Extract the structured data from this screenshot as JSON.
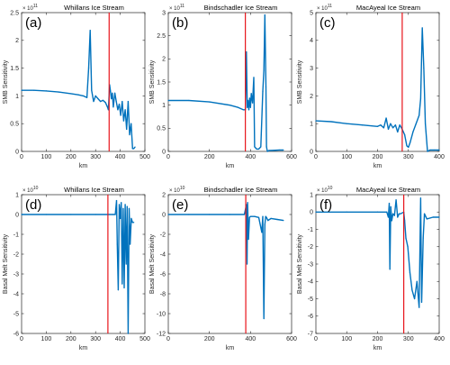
{
  "colors": {
    "series": "#0072BD",
    "marker": "#E8141B",
    "frame": "#262626"
  },
  "chart_data": [
    {
      "type": "line",
      "letter": "(a)",
      "title": "Whillans Ice Stream",
      "xlabel": "km",
      "ylabel": "SMB Sensitivity",
      "exponent": "× 10",
      "exponent_power": "11",
      "xlim": [
        0,
        500
      ],
      "ylim": [
        0,
        2.5
      ],
      "xticks": [
        0,
        100,
        200,
        300,
        400,
        500
      ],
      "xtick_labels": [
        "0",
        "100",
        "200",
        "300",
        "400",
        "500"
      ],
      "yticks": [
        0,
        0.5,
        1,
        1.5,
        2,
        2.5
      ],
      "ytick_labels": [
        "0",
        "0.5",
        "1",
        "1.5",
        "2",
        "2.5"
      ],
      "marker_x": 355,
      "x": [
        0,
        50,
        100,
        150,
        200,
        230,
        250,
        265,
        272,
        278,
        284,
        292,
        300,
        310,
        320,
        330,
        340,
        348,
        352,
        357,
        360,
        364,
        368,
        372,
        378,
        384,
        390,
        396,
        402,
        408,
        414,
        420,
        426,
        432,
        438,
        444,
        450,
        455,
        460
      ],
      "y": [
        1.1,
        1.1,
        1.09,
        1.07,
        1.04,
        1.02,
        1.0,
        0.97,
        1.5,
        2.18,
        1.1,
        0.9,
        1.0,
        0.95,
        0.9,
        0.92,
        0.88,
        0.8,
        0.75,
        1.2,
        1.1,
        0.95,
        1.05,
        0.8,
        1.05,
        0.9,
        0.75,
        0.85,
        0.65,
        0.9,
        0.55,
        0.75,
        0.4,
        0.9,
        0.3,
        0.5,
        0.05,
        0.05,
        0.08
      ]
    },
    {
      "type": "line",
      "letter": "(b)",
      "title": "Bindschadler Ice Stream",
      "xlabel": "km",
      "ylabel": "SMB Sensitivity",
      "exponent": "× 10",
      "exponent_power": "11",
      "xlim": [
        0,
        600
      ],
      "ylim": [
        0,
        3
      ],
      "xticks": [
        0,
        200,
        400,
        600
      ],
      "xtick_labels": [
        "0",
        "200",
        "400",
        "600"
      ],
      "yticks": [
        0,
        0.5,
        1,
        1.5,
        2,
        2.5,
        3
      ],
      "ytick_labels": [
        "0",
        "0.5",
        "1",
        "1.5",
        "2",
        "2.5",
        "3"
      ],
      "marker_x": 375,
      "x": [
        0,
        100,
        200,
        300,
        340,
        365,
        375,
        380,
        384,
        388,
        392,
        396,
        400,
        404,
        410,
        416,
        420,
        430,
        440,
        450,
        460,
        465,
        470,
        475,
        478,
        482,
        490,
        500,
        540,
        560
      ],
      "y": [
        1.1,
        1.1,
        1.07,
        1.0,
        0.95,
        0.9,
        0.9,
        2.15,
        0.95,
        1.1,
        0.9,
        1.15,
        0.95,
        1.25,
        1.05,
        1.6,
        0.1,
        0.05,
        0.05,
        0.1,
        1.3,
        1.75,
        2.95,
        1.4,
        0.1,
        0.0,
        0.02,
        0.02,
        0.03,
        0.03
      ]
    },
    {
      "type": "line",
      "letter": "(c)",
      "title": "MacAyeal Ice Stream",
      "xlabel": "km",
      "ylabel": "SMB Sensitivity",
      "exponent": "× 10",
      "exponent_power": "11",
      "xlim": [
        0,
        400
      ],
      "ylim": [
        0,
        5
      ],
      "xticks": [
        0,
        100,
        200,
        300,
        400
      ],
      "xtick_labels": [
        "0",
        "100",
        "200",
        "300",
        "400"
      ],
      "yticks": [
        0,
        1,
        2,
        3,
        4,
        5
      ],
      "ytick_labels": [
        "0",
        "1",
        "2",
        "3",
        "4",
        "5"
      ],
      "marker_x": 280,
      "x": [
        0,
        50,
        100,
        150,
        200,
        210,
        220,
        228,
        235,
        242,
        250,
        258,
        265,
        272,
        280,
        288,
        295,
        300,
        305,
        315,
        325,
        335,
        340,
        345,
        350,
        355,
        362,
        370,
        385,
        400
      ],
      "y": [
        1.1,
        1.07,
        1.0,
        0.95,
        0.9,
        0.95,
        0.85,
        1.2,
        0.8,
        1.0,
        0.85,
        0.95,
        0.7,
        0.95,
        0.8,
        0.6,
        0.2,
        0.15,
        0.3,
        0.7,
        1.0,
        1.3,
        1.9,
        4.45,
        3.0,
        1.0,
        0.0,
        0.05,
        0.05,
        0.05
      ]
    },
    {
      "type": "line",
      "letter": "(d)",
      "title": "Whillans Ice Stream",
      "xlabel": "km",
      "ylabel": "Basal Melt Sensitivity",
      "exponent": "× 10",
      "exponent_power": "10",
      "xlim": [
        0,
        500
      ],
      "ylim": [
        -6,
        1
      ],
      "xticks": [
        0,
        100,
        200,
        300,
        400,
        500
      ],
      "xtick_labels": [
        "0",
        "100",
        "200",
        "300",
        "400",
        "500"
      ],
      "yticks": [
        -6,
        -5,
        -4,
        -3,
        -2,
        -1,
        0,
        1
      ],
      "ytick_labels": [
        "-6",
        "-5",
        "-4",
        "-3",
        "-2",
        "-1",
        "0",
        "1"
      ],
      "marker_x": 350,
      "x": [
        0,
        100,
        200,
        300,
        370,
        380,
        385,
        388,
        392,
        396,
        400,
        404,
        408,
        412,
        416,
        420,
        424,
        428,
        432,
        436,
        440,
        445,
        450,
        455
      ],
      "y": [
        0,
        0,
        0,
        0,
        0,
        0,
        0.7,
        -1.5,
        -3.8,
        0.5,
        -0.2,
        0.6,
        -3.5,
        0.3,
        -3.7,
        0.5,
        -2.5,
        0.4,
        -6.0,
        0.3,
        -1.5,
        -0.2,
        -0.4,
        -0.4
      ]
    },
    {
      "type": "line",
      "letter": "(e)",
      "title": "Bindschadler Ice Stream",
      "xlabel": "km",
      "ylabel": "Basal Melt Sensitivity",
      "exponent": "× 10",
      "exponent_power": "10",
      "xlim": [
        0,
        600
      ],
      "ylim": [
        -12,
        2
      ],
      "xticks": [
        0,
        200,
        400,
        600
      ],
      "xtick_labels": [
        "0",
        "200",
        "400",
        "600"
      ],
      "yticks": [
        -12,
        -10,
        -8,
        -6,
        -4,
        -2,
        0,
        2
      ],
      "ytick_labels": [
        "-12",
        "-10",
        "-8",
        "-6",
        "-4",
        "-2",
        "0",
        "2"
      ],
      "marker_x": 377,
      "x": [
        0,
        100,
        200,
        300,
        370,
        380,
        383,
        386,
        390,
        395,
        400,
        420,
        440,
        455,
        460,
        465,
        470,
        474,
        478,
        485,
        500,
        530,
        560
      ],
      "y": [
        0,
        0,
        0,
        0,
        0,
        1.0,
        -5.0,
        1.2,
        -2.5,
        -0.3,
        -0.2,
        -0.2,
        -0.3,
        -1.8,
        -0.2,
        -10.5,
        -1.0,
        -0.2,
        -0.3,
        -0.6,
        -0.4,
        -0.5,
        -0.6
      ]
    },
    {
      "type": "line",
      "letter": "(f)",
      "title": "MacAyeal Ice Stream",
      "xlabel": "km",
      "ylabel": "Basal Melt Sensitivity",
      "exponent": "× 10",
      "exponent_power": "10",
      "xlim": [
        0,
        400
      ],
      "ylim": [
        -7,
        1
      ],
      "xticks": [
        0,
        100,
        200,
        300,
        400
      ],
      "xtick_labels": [
        "0",
        "100",
        "200",
        "300",
        "400"
      ],
      "yticks": [
        -7,
        -6,
        -5,
        -4,
        -3,
        -2,
        -1,
        0,
        1
      ],
      "ytick_labels": [
        "-7",
        "-6",
        "-5",
        "-4",
        "-3",
        "-2",
        "-1",
        "0",
        "1"
      ],
      "marker_x": 285,
      "x": [
        0,
        100,
        200,
        230,
        235,
        238,
        240,
        243,
        246,
        250,
        255,
        260,
        265,
        270,
        275,
        285,
        288,
        292,
        298,
        305,
        312,
        320,
        328,
        335,
        340,
        343,
        348,
        352,
        360,
        380,
        400
      ],
      "y": [
        0,
        0,
        0,
        0,
        -0.3,
        0.5,
        -3.3,
        0.3,
        -0.5,
        -0.1,
        -0.2,
        0.7,
        -0.3,
        -0.1,
        -0.1,
        0.0,
        -0.5,
        -1.5,
        -2.0,
        -3.5,
        -4.5,
        -5.0,
        -4.0,
        -5.5,
        0.8,
        -5.2,
        -1.5,
        -0.1,
        -0.4,
        -0.3,
        -0.3
      ]
    }
  ]
}
